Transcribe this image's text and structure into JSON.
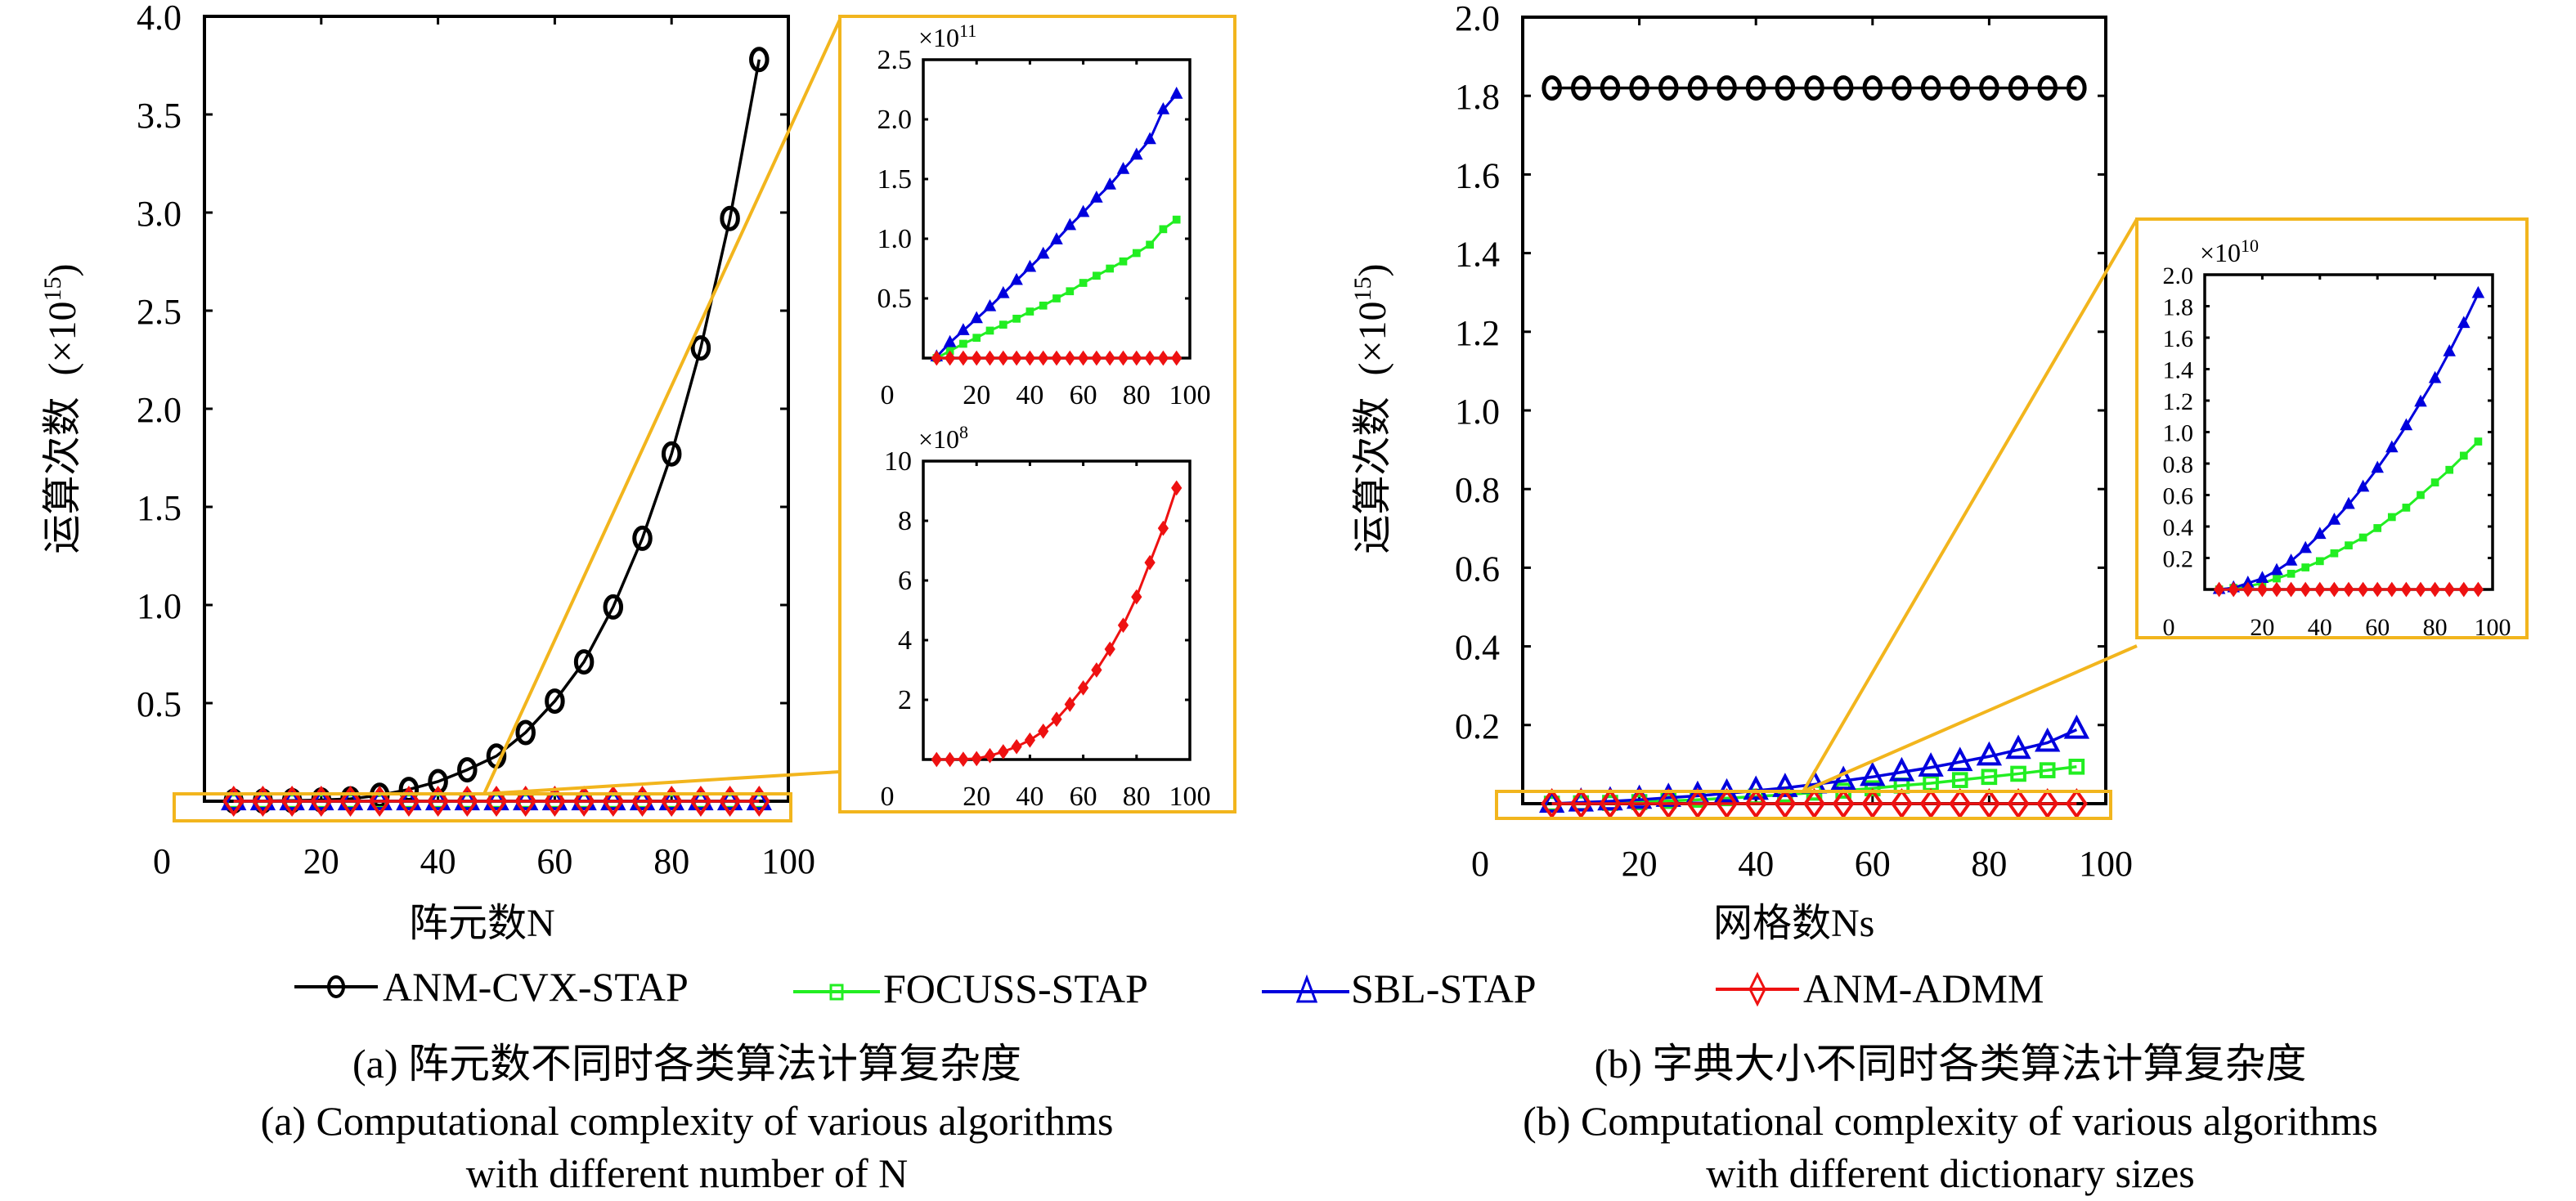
{
  "legend": {
    "items": [
      {
        "name": "ANM-CVX-STAP",
        "color": "#000000",
        "marker": "circle"
      },
      {
        "name": "FOCUSS-STAP",
        "color": "#22ee22",
        "marker": "square"
      },
      {
        "name": "SBL-STAP",
        "color": "#0000dd",
        "marker": "triangle"
      },
      {
        "name": "ANM-ADMM",
        "color": "#ee1111",
        "marker": "diamond"
      }
    ]
  },
  "captions": {
    "a": {
      "zh": "(a) 阵元数不同时各类算法计算复杂度",
      "en_line1": "(a) Computational complexity of various algorithms",
      "en_line2": "with different number of N"
    },
    "b": {
      "zh": "(b) 字典大小不同时各类算法计算复杂度",
      "en_line1": "(b) Computational complexity of various algorithms",
      "en_line2": "with different dictionary sizes"
    }
  },
  "highlight_color": "#f2b51d",
  "chart_data": [
    {
      "id": "a-main",
      "type": "line",
      "title": "",
      "xlabel": "阵元数N",
      "ylabel": "运算次数 (×10^15)",
      "ylabel_text": "运算次数",
      "ylabel_scale": "(×10",
      "ylabel_exp": "15",
      "xlim": [
        0,
        100
      ],
      "ylim": [
        0,
        4.0
      ],
      "xticks": [
        0,
        20,
        40,
        60,
        80,
        100
      ],
      "yticks": [
        0.5,
        1.0,
        1.5,
        2.0,
        2.5,
        3.0,
        3.5,
        4.0
      ],
      "ytick_labels": [
        "0.5",
        "1.0",
        "1.5",
        "2.0",
        "2.5",
        "3.0",
        "3.5",
        "4.0"
      ],
      "xtick_labels": [
        "0",
        "20",
        "40",
        "60",
        "80",
        "100"
      ],
      "x": [
        5,
        10,
        15,
        20,
        25,
        30,
        35,
        40,
        45,
        50,
        55,
        60,
        65,
        70,
        75,
        80,
        85,
        90,
        95
      ],
      "series": [
        {
          "name": "ANM-CVX-STAP",
          "values": [
            0.0003,
            0.001,
            0.003,
            0.006,
            0.012,
            0.03,
            0.06,
            0.1,
            0.16,
            0.23,
            0.35,
            0.51,
            0.71,
            0.99,
            1.34,
            1.77,
            2.31,
            2.97,
            3.78
          ]
        },
        {
          "name": "FOCUSS-STAP",
          "values": [
            0,
            0,
            0,
            0,
            0,
            0,
            0,
            0,
            0,
            0,
            0,
            0,
            0,
            0,
            0,
            0,
            0,
            0,
            0
          ]
        },
        {
          "name": "SBL-STAP",
          "values": [
            0,
            0,
            0,
            0,
            0,
            0,
            0,
            0,
            0,
            0,
            0,
            0,
            0,
            0,
            0,
            0,
            0,
            0,
            0
          ]
        },
        {
          "name": "ANM-ADMM",
          "values": [
            0,
            0,
            0,
            0,
            0,
            0,
            0,
            0,
            0,
            0,
            0,
            0,
            0,
            0,
            0,
            0,
            0,
            0,
            0
          ]
        }
      ],
      "grid": false
    },
    {
      "id": "a-inset-top",
      "type": "line",
      "scale_label": "×10",
      "scale_exp": "11",
      "xlim": [
        0,
        100
      ],
      "ylim": [
        0,
        2.5
      ],
      "xticks": [
        0,
        20,
        40,
        60,
        80,
        100
      ],
      "xtick_labels": [
        "0",
        "20",
        "40",
        "60",
        "80",
        "100"
      ],
      "yticks": [
        0.5,
        1.0,
        1.5,
        2.0,
        2.5
      ],
      "ytick_labels": [
        "0.5",
        "1.0",
        "1.5",
        "2.0",
        "2.5"
      ],
      "x": [
        5,
        10,
        15,
        20,
        25,
        30,
        35,
        40,
        45,
        50,
        55,
        60,
        65,
        70,
        75,
        80,
        85,
        90,
        95
      ],
      "series": [
        {
          "name": "FOCUSS-STAP",
          "values": [
            0.0,
            0.06,
            0.12,
            0.17,
            0.23,
            0.28,
            0.33,
            0.39,
            0.44,
            0.5,
            0.56,
            0.63,
            0.69,
            0.75,
            0.81,
            0.88,
            0.95,
            1.08,
            1.16
          ]
        },
        {
          "name": "SBL-STAP",
          "values": [
            0.01,
            0.13,
            0.23,
            0.33,
            0.43,
            0.54,
            0.65,
            0.76,
            0.87,
            0.99,
            1.11,
            1.22,
            1.34,
            1.45,
            1.58,
            1.7,
            1.83,
            2.08,
            2.21
          ]
        },
        {
          "name": "ANM-ADMM",
          "values": [
            0,
            0,
            0,
            0,
            0,
            0,
            0,
            0,
            0,
            0,
            0,
            0,
            0,
            0,
            0,
            0,
            0,
            0,
            0
          ]
        }
      ]
    },
    {
      "id": "a-inset-bottom",
      "type": "line",
      "scale_label": "×10",
      "scale_exp": "8",
      "xlim": [
        0,
        100
      ],
      "ylim": [
        0,
        10
      ],
      "xticks": [
        0,
        20,
        40,
        60,
        80,
        100
      ],
      "xtick_labels": [
        "0",
        "20",
        "40",
        "60",
        "80",
        "100"
      ],
      "yticks": [
        2,
        4,
        6,
        8,
        10
      ],
      "ytick_labels": [
        "2",
        "4",
        "6",
        "8",
        "10"
      ],
      "x": [
        5,
        10,
        15,
        20,
        25,
        30,
        35,
        40,
        45,
        50,
        55,
        60,
        65,
        70,
        75,
        80,
        85,
        90,
        95
      ],
      "series": [
        {
          "name": "ANM-ADMM",
          "values": [
            0.0,
            0.0,
            0.01,
            0.03,
            0.13,
            0.26,
            0.43,
            0.65,
            0.95,
            1.35,
            1.85,
            2.4,
            3.0,
            3.7,
            4.5,
            5.45,
            6.6,
            7.75,
            9.1
          ]
        }
      ]
    },
    {
      "id": "b-main",
      "type": "line",
      "title": "",
      "xlabel": "网格数Ns",
      "ylabel": "运算次数 (×10^15)",
      "ylabel_text": "运算次数",
      "ylabel_scale": "(×10",
      "ylabel_exp": "15",
      "xlim": [
        0,
        100
      ],
      "ylim": [
        0,
        2.0
      ],
      "xticks": [
        0,
        20,
        40,
        60,
        80,
        100
      ],
      "xtick_labels": [
        "0",
        "20",
        "40",
        "60",
        "80",
        "100"
      ],
      "yticks": [
        0.2,
        0.4,
        0.6,
        0.8,
        1.0,
        1.2,
        1.4,
        1.6,
        1.8,
        2.0
      ],
      "ytick_labels": [
        "0.2",
        "0.4",
        "0.6",
        "0.8",
        "1.0",
        "1.2",
        "1.4",
        "1.6",
        "1.8",
        "2.0"
      ],
      "x": [
        5,
        10,
        15,
        20,
        25,
        30,
        35,
        40,
        45,
        50,
        55,
        60,
        65,
        70,
        75,
        80,
        85,
        90,
        95
      ],
      "series": [
        {
          "name": "ANM-CVX-STAP",
          "values": [
            1.82,
            1.82,
            1.82,
            1.82,
            1.82,
            1.82,
            1.82,
            1.82,
            1.82,
            1.82,
            1.82,
            1.82,
            1.82,
            1.82,
            1.82,
            1.82,
            1.82,
            1.82,
            1.82
          ]
        },
        {
          "name": "FOCUSS-STAP",
          "values": [
            0.0,
            0.001,
            0.002,
            0.004,
            0.007,
            0.01,
            0.014,
            0.018,
            0.023,
            0.028,
            0.033,
            0.039,
            0.046,
            0.052,
            0.06,
            0.068,
            0.076,
            0.085,
            0.094
          ]
        },
        {
          "name": "SBL-STAP",
          "values": [
            0.0,
            0.003,
            0.006,
            0.01,
            0.015,
            0.02,
            0.026,
            0.033,
            0.04,
            0.049,
            0.058,
            0.068,
            0.08,
            0.092,
            0.106,
            0.12,
            0.137,
            0.155,
            0.188
          ]
        },
        {
          "name": "ANM-ADMM",
          "values": [
            0,
            0,
            0,
            0,
            0,
            0,
            0,
            0,
            0,
            0,
            0,
            0,
            0,
            0,
            0,
            0,
            0,
            0,
            0
          ]
        }
      ],
      "grid": false
    },
    {
      "id": "b-inset",
      "type": "line",
      "scale_label": "×10",
      "scale_exp": "10",
      "xlim": [
        0,
        100
      ],
      "ylim": [
        0,
        2.0
      ],
      "xticks": [
        0,
        20,
        40,
        60,
        80,
        100
      ],
      "xtick_labels": [
        "0",
        "20",
        "40",
        "60",
        "80",
        "100"
      ],
      "yticks": [
        0.2,
        0.4,
        0.6,
        0.8,
        1.0,
        1.2,
        1.4,
        1.6,
        1.8,
        2.0
      ],
      "ytick_labels": [
        "0.2",
        "0.4",
        "0.6",
        "0.8",
        "1.0",
        "1.2",
        "1.4",
        "1.6",
        "1.8",
        "2.0"
      ],
      "x": [
        5,
        10,
        15,
        20,
        25,
        30,
        35,
        40,
        45,
        50,
        55,
        60,
        65,
        70,
        75,
        80,
        85,
        90,
        95
      ],
      "series": [
        {
          "name": "FOCUSS-STAP",
          "values": [
            0.0,
            0.01,
            0.02,
            0.04,
            0.07,
            0.1,
            0.14,
            0.18,
            0.23,
            0.28,
            0.33,
            0.39,
            0.46,
            0.52,
            0.6,
            0.68,
            0.76,
            0.85,
            0.94
          ]
        },
        {
          "name": "SBL-STAP",
          "values": [
            0.0,
            0.01,
            0.04,
            0.07,
            0.12,
            0.18,
            0.26,
            0.35,
            0.44,
            0.54,
            0.65,
            0.77,
            0.9,
            1.04,
            1.19,
            1.34,
            1.51,
            1.69,
            1.88
          ]
        },
        {
          "name": "ANM-ADMM",
          "values": [
            0,
            0,
            0,
            0,
            0,
            0,
            0,
            0,
            0,
            0,
            0,
            0,
            0,
            0,
            0,
            0,
            0,
            0,
            0
          ]
        }
      ]
    }
  ]
}
